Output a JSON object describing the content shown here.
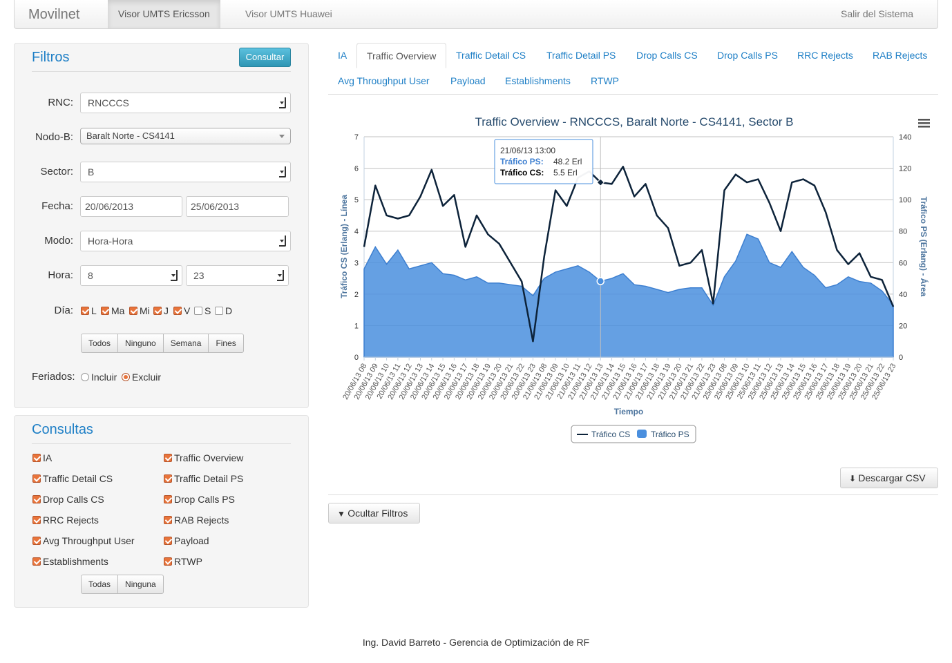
{
  "nav": {
    "brand": "Movilnet",
    "items": [
      "Visor UMTS Ericsson",
      "Visor UMTS Huawei"
    ],
    "logout": "Salir del Sistema"
  },
  "filtros": {
    "title": "Filtros",
    "consultar": "Consultar",
    "rnc_label": "RNC:",
    "rnc_value": "RNCCCS",
    "nodob_label": "Nodo-B:",
    "nodob_value": "Baralt Norte - CS4141",
    "sector_label": "Sector:",
    "sector_value": "B",
    "fecha_label": "Fecha:",
    "fecha_desde": "20/06/2013",
    "fecha_hasta": "25/06/2013",
    "modo_label": "Modo:",
    "modo_value": "Hora-Hora",
    "hora_label": "Hora:",
    "hora_desde": "8",
    "hora_hasta": "23",
    "dia_label": "Día:",
    "dias": [
      {
        "l": "L",
        "on": true
      },
      {
        "l": "Ma",
        "on": true
      },
      {
        "l": "Mi",
        "on": true
      },
      {
        "l": "J",
        "on": true
      },
      {
        "l": "V",
        "on": true
      },
      {
        "l": "S",
        "on": false
      },
      {
        "l": "D",
        "on": false
      }
    ],
    "dia_buttons": [
      "Todos",
      "Ninguno",
      "Semana",
      "Fines"
    ],
    "feriados_label": "Feriados:",
    "incluir": "Incluir",
    "excluir": "Excluir"
  },
  "consultas": {
    "title": "Consultas",
    "items": [
      "IA",
      "Traffic Overview",
      "Traffic Detail CS",
      "Traffic Detail PS",
      "Drop Calls CS",
      "Drop Calls PS",
      "RRC Rejects",
      "RAB Rejects",
      "Avg Throughput User",
      "Payload",
      "Establishments",
      "RTWP"
    ],
    "buttons": [
      "Todas",
      "Ninguna"
    ]
  },
  "tabs": [
    "IA",
    "Traffic Overview",
    "Traffic Detail CS",
    "Traffic Detail PS",
    "Drop Calls CS",
    "Drop Calls PS",
    "RRC Rejects",
    "RAB Rejects",
    "Avg Throughput User",
    "Payload",
    "Establishments",
    "RTWP"
  ],
  "active_tab": "Traffic Overview",
  "tooltip": {
    "date": "21/06/13 13:00",
    "ps_label": "Tráfico PS:",
    "ps_value": "48.2 Erl",
    "cs_label": "Tráfico CS:",
    "cs_value": "5.5 Erl"
  },
  "colors": {
    "cs": "#0d233a",
    "ps": "#4a8fde",
    "accent": "#1e7fc6",
    "check": "#e8743b"
  },
  "buttons": {
    "csv": "Descargar CSV",
    "ocultar": "Ocultar Filtros"
  },
  "footer": "Ing. David Barreto - Gerencia de Optimización de RF",
  "chart_data": {
    "type": "line",
    "title": "Traffic Overview - RNCCCS, Baralt Norte - CS4141, Sector B",
    "xlabel": "Tiempo",
    "ylabel_left": "Tráfico CS (Erlang) - Línea",
    "ylabel_right": "Tráfico PS (Erlang) - Área",
    "yleft_range": [
      0,
      7
    ],
    "yleft_ticks": [
      0,
      1,
      2,
      3,
      4,
      5,
      6,
      7
    ],
    "yright_range": [
      0,
      140
    ],
    "yright_ticks": [
      0,
      20,
      40,
      60,
      80,
      100,
      120,
      140
    ],
    "grid": true,
    "legend_position": "bottom",
    "categories": [
      "20/06/13 08",
      "20/06/13 09",
      "20/06/13 10",
      "20/06/13 11",
      "20/06/13 12",
      "20/06/13 13",
      "20/06/13 14",
      "20/06/13 15",
      "20/06/13 16",
      "20/06/13 17",
      "20/06/13 18",
      "20/06/13 19",
      "20/06/13 20",
      "20/06/13 21",
      "20/06/13 22",
      "20/06/13 23",
      "21/06/13 08",
      "21/06/13 09",
      "21/06/13 10",
      "21/06/13 11",
      "21/06/13 12",
      "21/06/13 13",
      "21/06/13 14",
      "21/06/13 15",
      "21/06/13 16",
      "21/06/13 17",
      "21/06/13 18",
      "21/06/13 19",
      "21/06/13 20",
      "21/06/13 21",
      "21/06/13 22",
      "21/06/13 23",
      "25/06/13 08",
      "25/06/13 09",
      "25/06/13 10",
      "25/06/13 11",
      "25/06/13 12",
      "25/06/13 13",
      "25/06/13 14",
      "25/06/13 15",
      "25/06/13 16",
      "25/06/13 17",
      "25/06/13 18",
      "25/06/13 19",
      "25/06/13 20",
      "25/06/13 21",
      "25/06/13 22",
      "25/06/13 23"
    ],
    "series": [
      {
        "name": "Tráfico CS",
        "type": "line",
        "axis": "left",
        "values": [
          3.5,
          5.45,
          4.5,
          4.4,
          4.5,
          5.1,
          5.95,
          4.8,
          5.15,
          3.5,
          4.5,
          3.9,
          3.6,
          3.0,
          2.4,
          0.5,
          3.2,
          5.3,
          4.8,
          5.7,
          5.9,
          5.55,
          5.5,
          6.05,
          5.1,
          5.5,
          4.5,
          4.1,
          2.9,
          3.0,
          3.4,
          1.7,
          5.3,
          5.8,
          5.55,
          5.65,
          4.9,
          4.0,
          5.55,
          5.65,
          5.45,
          4.6,
          3.4,
          2.95,
          3.3,
          2.55,
          2.45,
          1.6
        ]
      },
      {
        "name": "Tráfico PS",
        "type": "area",
        "axis": "right",
        "values": [
          56,
          70,
          59,
          68,
          56,
          58,
          60,
          53,
          52,
          49,
          51,
          47,
          47,
          46,
          45,
          39,
          50,
          54,
          56,
          58,
          54,
          48.2,
          50,
          53,
          46,
          45,
          43,
          41,
          43,
          44,
          44,
          33,
          51,
          61,
          78,
          75,
          60,
          57,
          67,
          57,
          52,
          44,
          46,
          51,
          48,
          47,
          42,
          33
        ]
      }
    ]
  }
}
